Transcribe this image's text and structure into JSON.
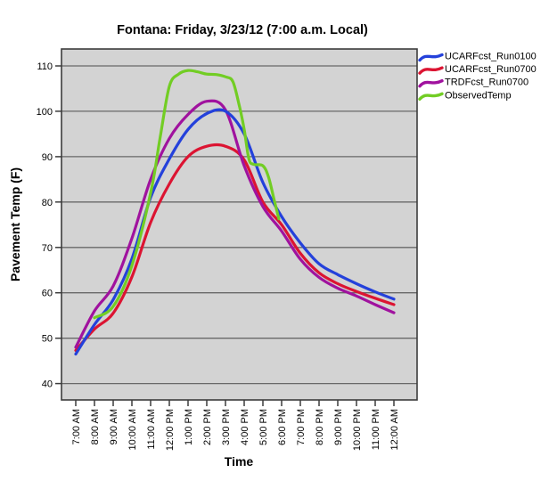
{
  "chart_data": {
    "type": "line",
    "title": "Fontana: Friday, 3/23/12 (7:00 a.m. Local)",
    "xlabel": "Time",
    "ylabel": "Pavement Temp (F)",
    "x_tick_labels": [
      "7:00 AM",
      "8:00 AM",
      "9:00 AM",
      "10:00 AM",
      "11:00 AM",
      "12:00 PM",
      "1:00 PM",
      "2:00 PM",
      "3:00 PM",
      "4:00 PM",
      "5:00 PM",
      "6:00 PM",
      "7:00 PM",
      "8:00 PM",
      "9:00 PM",
      "10:00 PM",
      "11:00 PM",
      "12:00 AM"
    ],
    "y_ticks": [
      110,
      100,
      90,
      80,
      70,
      60,
      50,
      40
    ],
    "ylim": [
      37,
      114
    ],
    "x_axis_note": "x values are hours after 7:00 AM local",
    "grid": "horizontal",
    "legend_position": "top-right",
    "colors": {
      "plot_bg": "#d3d3d3",
      "gridline": "#686868",
      "border": "#3c3c3c",
      "tick": "#3c3c3c"
    },
    "series": [
      {
        "name": "UCARFcst_Run0100",
        "color": "#2441db",
        "x": [
          0,
          1,
          2,
          3,
          4,
          5,
          6,
          7,
          8,
          9,
          10,
          11,
          12,
          13,
          14,
          15,
          16,
          17
        ],
        "values": [
          46.5,
          53,
          58.5,
          67.5,
          81,
          89.5,
          96,
          99.5,
          100,
          95,
          84.3,
          76.8,
          71,
          66.4,
          64,
          62,
          60.2,
          58.6
        ]
      },
      {
        "name": "UCARFcst_Run0700",
        "color": "#dc1432",
        "x": [
          0,
          1,
          2,
          3,
          4,
          5,
          6,
          7,
          8,
          9,
          10,
          11,
          12,
          13,
          14,
          15,
          16,
          17
        ],
        "values": [
          47.3,
          52,
          55.5,
          63.5,
          75.5,
          84,
          90,
          92.3,
          92.3,
          89.3,
          80,
          75,
          68.7,
          64.4,
          62,
          60.3,
          58.8,
          57.4
        ]
      },
      {
        "name": "TRDFcst_Run0700",
        "color": "#a0129e",
        "x": [
          0,
          1,
          2,
          3,
          4,
          5,
          6,
          7,
          8,
          9,
          10,
          11,
          12,
          13,
          14,
          15,
          16,
          17
        ],
        "values": [
          48,
          56,
          61.5,
          72,
          85,
          94,
          99.3,
          102.2,
          100.3,
          88,
          79,
          73.6,
          67.4,
          63.4,
          61,
          59.3,
          57.4,
          55.6
        ]
      },
      {
        "name": "ObservedTemp",
        "color": "#72cd24",
        "x": [
          1,
          2,
          3,
          4,
          4.5,
          5,
          5.5,
          6,
          6.5,
          7,
          7.5,
          8,
          8.4,
          8.75,
          9,
          9.25,
          9.5,
          10,
          10.3,
          10.6,
          10.85
        ],
        "values": [
          54.5,
          57,
          66,
          82,
          94,
          105.5,
          108.2,
          109,
          108.7,
          108.2,
          108.1,
          107.6,
          106.5,
          101,
          96,
          89.5,
          88.3,
          88,
          85.5,
          80.5,
          76.3
        ]
      }
    ]
  }
}
